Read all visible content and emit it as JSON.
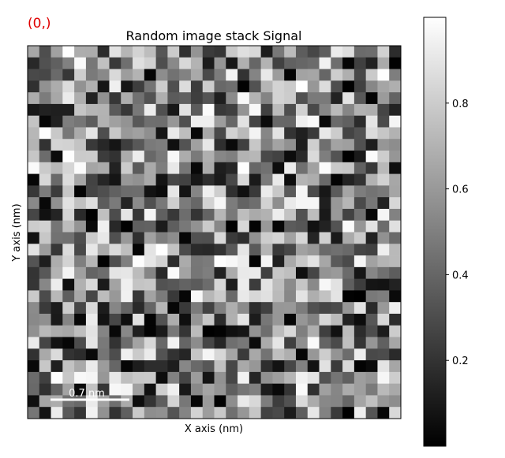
{
  "index_label": "(0,)",
  "index_label_color": "#e00000",
  "chart_data": {
    "type": "heatmap",
    "title": "Random image stack Signal",
    "xlabel": "X axis (nm)",
    "ylabel": "Y axis (nm)",
    "colormap": "gray",
    "grid": false,
    "rows": 32,
    "cols": 32,
    "value_range": [
      0,
      1
    ],
    "values_note": "",
    "colorbar": {
      "ticks": [
        0.2,
        0.4,
        0.6,
        0.8
      ],
      "tick_labels": [
        "0.2",
        "0.4",
        "0.6",
        "0.8"
      ],
      "range": [
        0.0,
        1.0
      ]
    },
    "scalebar": {
      "label": "0.7 nm",
      "color": "#ffffff"
    }
  }
}
